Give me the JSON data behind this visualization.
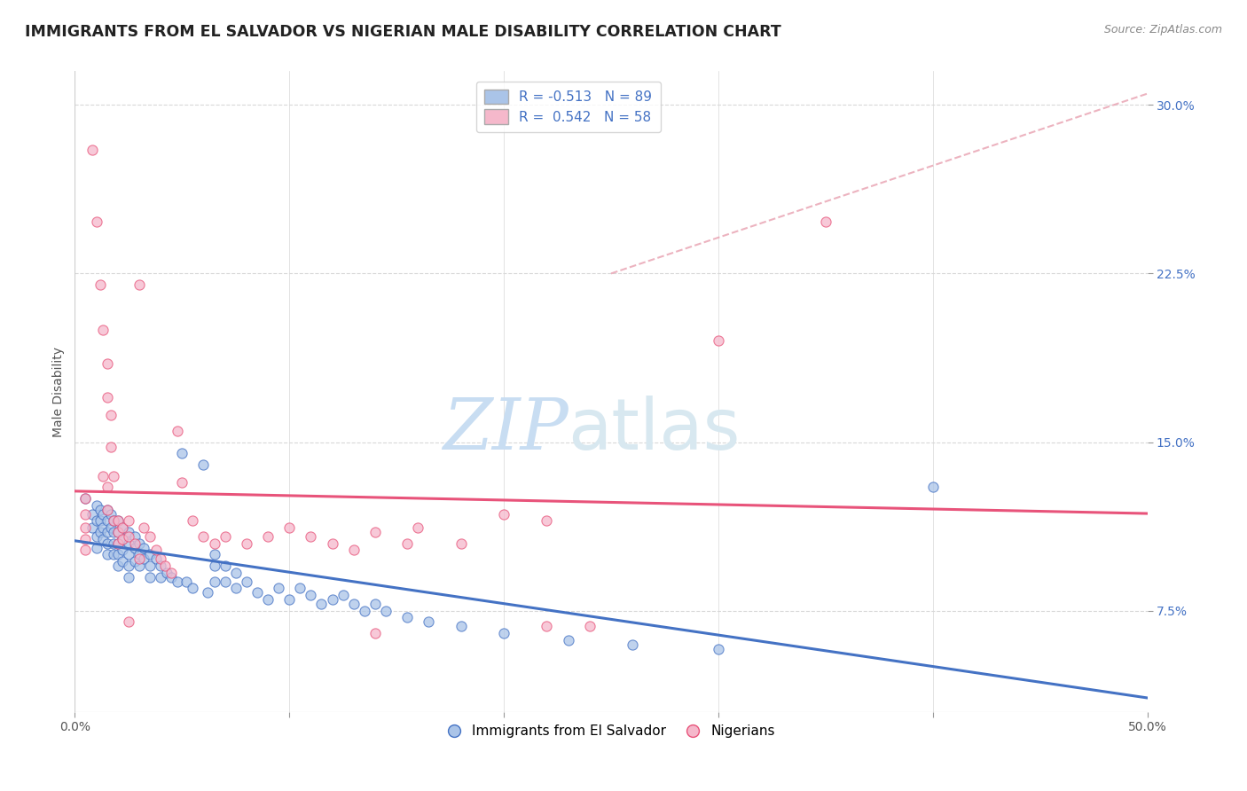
{
  "title": "IMMIGRANTS FROM EL SALVADOR VS NIGERIAN MALE DISABILITY CORRELATION CHART",
  "source": "Source: ZipAtlas.com",
  "ylabel": "Male Disability",
  "watermark_zip": "ZIP",
  "watermark_atlas": "atlas",
  "xlim": [
    0.0,
    0.5
  ],
  "ylim": [
    0.03,
    0.315
  ],
  "xticks": [
    0.0,
    0.1,
    0.2,
    0.3,
    0.4,
    0.5
  ],
  "xticklabels": [
    "0.0%",
    "",
    "",
    "",
    "",
    "50.0%"
  ],
  "yticks": [
    0.075,
    0.15,
    0.225,
    0.3
  ],
  "yticklabels": [
    "7.5%",
    "15.0%",
    "22.5%",
    "30.0%"
  ],
  "legend_labels_bottom": [
    "Immigrants from El Salvador",
    "Nigerians"
  ],
  "blue_scatter_color": "#aac4e8",
  "pink_scatter_color": "#f5b8cb",
  "blue_line_color": "#4472c4",
  "pink_line_color": "#e8537a",
  "dashed_line_color": "#e8a0b0",
  "grid_color": "#d8d8d8",
  "background_color": "#ffffff",
  "R_blue": -0.513,
  "N_blue": 89,
  "R_pink": 0.542,
  "N_pink": 58,
  "blue_points": [
    [
      0.005,
      0.125
    ],
    [
      0.008,
      0.118
    ],
    [
      0.008,
      0.112
    ],
    [
      0.01,
      0.122
    ],
    [
      0.01,
      0.115
    ],
    [
      0.01,
      0.108
    ],
    [
      0.01,
      0.103
    ],
    [
      0.012,
      0.12
    ],
    [
      0.012,
      0.115
    ],
    [
      0.012,
      0.11
    ],
    [
      0.013,
      0.118
    ],
    [
      0.013,
      0.112
    ],
    [
      0.013,
      0.107
    ],
    [
      0.015,
      0.12
    ],
    [
      0.015,
      0.115
    ],
    [
      0.015,
      0.11
    ],
    [
      0.015,
      0.105
    ],
    [
      0.015,
      0.1
    ],
    [
      0.017,
      0.118
    ],
    [
      0.017,
      0.112
    ],
    [
      0.018,
      0.115
    ],
    [
      0.018,
      0.11
    ],
    [
      0.018,
      0.105
    ],
    [
      0.018,
      0.1
    ],
    [
      0.02,
      0.115
    ],
    [
      0.02,
      0.11
    ],
    [
      0.02,
      0.105
    ],
    [
      0.02,
      0.1
    ],
    [
      0.02,
      0.095
    ],
    [
      0.022,
      0.112
    ],
    [
      0.022,
      0.107
    ],
    [
      0.022,
      0.102
    ],
    [
      0.022,
      0.097
    ],
    [
      0.025,
      0.11
    ],
    [
      0.025,
      0.105
    ],
    [
      0.025,
      0.1
    ],
    [
      0.025,
      0.095
    ],
    [
      0.025,
      0.09
    ],
    [
      0.028,
      0.108
    ],
    [
      0.028,
      0.103
    ],
    [
      0.028,
      0.097
    ],
    [
      0.03,
      0.105
    ],
    [
      0.03,
      0.1
    ],
    [
      0.03,
      0.095
    ],
    [
      0.032,
      0.103
    ],
    [
      0.032,
      0.098
    ],
    [
      0.035,
      0.1
    ],
    [
      0.035,
      0.095
    ],
    [
      0.035,
      0.09
    ],
    [
      0.038,
      0.098
    ],
    [
      0.04,
      0.095
    ],
    [
      0.04,
      0.09
    ],
    [
      0.043,
      0.092
    ],
    [
      0.045,
      0.09
    ],
    [
      0.048,
      0.088
    ],
    [
      0.05,
      0.145
    ],
    [
      0.052,
      0.088
    ],
    [
      0.055,
      0.085
    ],
    [
      0.06,
      0.14
    ],
    [
      0.062,
      0.083
    ],
    [
      0.065,
      0.1
    ],
    [
      0.065,
      0.095
    ],
    [
      0.065,
      0.088
    ],
    [
      0.07,
      0.095
    ],
    [
      0.07,
      0.088
    ],
    [
      0.075,
      0.092
    ],
    [
      0.075,
      0.085
    ],
    [
      0.08,
      0.088
    ],
    [
      0.085,
      0.083
    ],
    [
      0.09,
      0.08
    ],
    [
      0.095,
      0.085
    ],
    [
      0.1,
      0.08
    ],
    [
      0.105,
      0.085
    ],
    [
      0.11,
      0.082
    ],
    [
      0.115,
      0.078
    ],
    [
      0.12,
      0.08
    ],
    [
      0.125,
      0.082
    ],
    [
      0.13,
      0.078
    ],
    [
      0.135,
      0.075
    ],
    [
      0.14,
      0.078
    ],
    [
      0.145,
      0.075
    ],
    [
      0.155,
      0.072
    ],
    [
      0.165,
      0.07
    ],
    [
      0.18,
      0.068
    ],
    [
      0.2,
      0.065
    ],
    [
      0.23,
      0.062
    ],
    [
      0.26,
      0.06
    ],
    [
      0.3,
      0.058
    ],
    [
      0.4,
      0.13
    ]
  ],
  "pink_points": [
    [
      0.005,
      0.125
    ],
    [
      0.005,
      0.118
    ],
    [
      0.005,
      0.112
    ],
    [
      0.005,
      0.107
    ],
    [
      0.005,
      0.102
    ],
    [
      0.008,
      0.28
    ],
    [
      0.01,
      0.248
    ],
    [
      0.012,
      0.22
    ],
    [
      0.013,
      0.2
    ],
    [
      0.013,
      0.135
    ],
    [
      0.015,
      0.185
    ],
    [
      0.015,
      0.17
    ],
    [
      0.015,
      0.13
    ],
    [
      0.015,
      0.12
    ],
    [
      0.017,
      0.162
    ],
    [
      0.017,
      0.148
    ],
    [
      0.018,
      0.135
    ],
    [
      0.018,
      0.115
    ],
    [
      0.02,
      0.115
    ],
    [
      0.02,
      0.11
    ],
    [
      0.02,
      0.105
    ],
    [
      0.022,
      0.112
    ],
    [
      0.022,
      0.107
    ],
    [
      0.025,
      0.115
    ],
    [
      0.025,
      0.108
    ],
    [
      0.025,
      0.07
    ],
    [
      0.028,
      0.105
    ],
    [
      0.03,
      0.22
    ],
    [
      0.03,
      0.098
    ],
    [
      0.032,
      0.112
    ],
    [
      0.035,
      0.108
    ],
    [
      0.038,
      0.102
    ],
    [
      0.04,
      0.098
    ],
    [
      0.042,
      0.095
    ],
    [
      0.045,
      0.092
    ],
    [
      0.048,
      0.155
    ],
    [
      0.05,
      0.132
    ],
    [
      0.055,
      0.115
    ],
    [
      0.06,
      0.108
    ],
    [
      0.065,
      0.105
    ],
    [
      0.07,
      0.108
    ],
    [
      0.08,
      0.105
    ],
    [
      0.09,
      0.108
    ],
    [
      0.1,
      0.112
    ],
    [
      0.11,
      0.108
    ],
    [
      0.12,
      0.105
    ],
    [
      0.13,
      0.102
    ],
    [
      0.14,
      0.11
    ],
    [
      0.155,
      0.105
    ],
    [
      0.16,
      0.112
    ],
    [
      0.18,
      0.105
    ],
    [
      0.2,
      0.118
    ],
    [
      0.22,
      0.115
    ],
    [
      0.3,
      0.195
    ],
    [
      0.35,
      0.248
    ],
    [
      0.14,
      0.065
    ],
    [
      0.22,
      0.068
    ],
    [
      0.24,
      0.068
    ]
  ],
  "title_fontsize": 12.5,
  "axis_label_fontsize": 10,
  "tick_fontsize": 10,
  "legend_fontsize": 11,
  "watermark_fontsize_zip": 58,
  "watermark_fontsize_atlas": 58,
  "watermark_color_zip": "#c8ddf2",
  "watermark_color_atlas": "#d8e8f0"
}
